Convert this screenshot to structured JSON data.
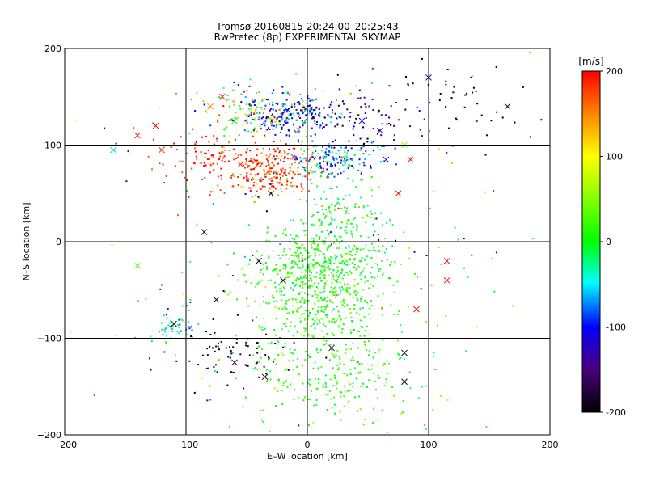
{
  "chart_data": {
    "type": "scatter",
    "title": "Tromsø 20160815 20:24:00–20:25:43",
    "subtitle": "RwPretec (8p) EXPERIMENTAL SKYMAP",
    "xlabel": "E–W location [km]",
    "ylabel": "N–S location [km]",
    "xlim": [
      -200,
      200
    ],
    "ylim": [
      -200,
      200
    ],
    "xticks": [
      -200,
      -100,
      0,
      100,
      200
    ],
    "yticks": [
      -200,
      -100,
      0,
      100,
      200
    ],
    "grid_lines_at": [
      -100,
      0,
      100
    ],
    "colorbar": {
      "label": "[m/s]",
      "min": -200,
      "max": 200,
      "ticks": [
        200,
        100,
        0,
        -100,
        -200
      ],
      "colormap": "rainbow (black–purple–blue–cyan–green–yellow–red)"
    },
    "clusters": [
      {
        "x": -15,
        "y": 130,
        "sx": 20,
        "sy": 10,
        "n": 220,
        "v": -110,
        "sv": 40
      },
      {
        "x": -45,
        "y": 135,
        "sx": 22,
        "sy": 12,
        "n": 110,
        "v": 40,
        "sv": 90
      },
      {
        "x": -65,
        "y": 85,
        "sx": 25,
        "sy": 15,
        "n": 140,
        "v": 185,
        "sv": 25
      },
      {
        "x": -25,
        "y": 72,
        "sx": 18,
        "sy": 12,
        "n": 200,
        "v": 175,
        "sv": 30
      },
      {
        "x": 20,
        "y": 85,
        "sx": 18,
        "sy": 12,
        "n": 170,
        "v": -70,
        "sv": 40
      },
      {
        "x": 50,
        "y": 120,
        "sx": 25,
        "sy": 20,
        "n": 80,
        "v": -160,
        "sv": 40
      },
      {
        "x": 30,
        "y": 25,
        "sx": 18,
        "sy": 18,
        "n": 120,
        "v": 0,
        "sv": 25
      },
      {
        "x": 10,
        "y": -25,
        "sx": 28,
        "sy": 20,
        "n": 450,
        "v": 10,
        "sv": 20
      },
      {
        "x": 10,
        "y": -70,
        "sx": 25,
        "sy": 20,
        "n": 250,
        "v": 20,
        "sv": 25
      },
      {
        "x": 20,
        "y": -140,
        "sx": 40,
        "sy": 30,
        "n": 260,
        "v": 15,
        "sv": 20
      },
      {
        "x": -110,
        "y": -90,
        "sx": 12,
        "sy": 8,
        "n": 45,
        "v": -45,
        "sv": 30
      },
      {
        "x": -60,
        "y": -115,
        "sx": 25,
        "sy": 15,
        "n": 70,
        "v": -190,
        "sv": 20
      },
      {
        "x": 130,
        "y": 150,
        "sx": 40,
        "sy": 25,
        "n": 40,
        "v": -200,
        "sv": 5
      },
      {
        "x": 0,
        "y": 0,
        "sx": 90,
        "sy": 90,
        "n": 180,
        "v": 0,
        "sv": 110
      }
    ],
    "x_markers": [
      {
        "x": -160,
        "y": 95,
        "v": -60
      },
      {
        "x": -140,
        "y": 110,
        "v": 195
      },
      {
        "x": -125,
        "y": 120,
        "v": 195
      },
      {
        "x": -120,
        "y": 95,
        "v": 185
      },
      {
        "x": -80,
        "y": 140,
        "v": 150
      },
      {
        "x": -70,
        "y": 150,
        "v": 190
      },
      {
        "x": -60,
        "y": 125,
        "v": 10
      },
      {
        "x": -85,
        "y": 10,
        "v": -200
      },
      {
        "x": -140,
        "y": -25,
        "v": 30
      },
      {
        "x": -110,
        "y": -85,
        "v": -200
      },
      {
        "x": -75,
        "y": -60,
        "v": -200
      },
      {
        "x": -60,
        "y": -125,
        "v": -170
      },
      {
        "x": -35,
        "y": -140,
        "v": -200
      },
      {
        "x": -20,
        "y": -40,
        "v": -200
      },
      {
        "x": 85,
        "y": 85,
        "v": 195
      },
      {
        "x": 75,
        "y": 50,
        "v": 195
      },
      {
        "x": 115,
        "y": -20,
        "v": 195
      },
      {
        "x": 115,
        "y": -40,
        "v": 195
      },
      {
        "x": 90,
        "y": -70,
        "v": 195
      },
      {
        "x": 80,
        "y": -115,
        "v": -200
      },
      {
        "x": 80,
        "y": -145,
        "v": -200
      },
      {
        "x": 20,
        "y": -110,
        "v": -160
      },
      {
        "x": 45,
        "y": 125,
        "v": -110
      },
      {
        "x": 60,
        "y": 115,
        "v": -120
      },
      {
        "x": 65,
        "y": 85,
        "v": -100
      },
      {
        "x": 80,
        "y": 100,
        "v": 60
      },
      {
        "x": 165,
        "y": 140,
        "v": -200
      },
      {
        "x": 100,
        "y": 170,
        "v": -140
      },
      {
        "x": -55,
        "y": 80,
        "v": 185
      },
      {
        "x": -30,
        "y": 50,
        "v": -200
      },
      {
        "x": -40,
        "y": -20,
        "v": -200
      }
    ]
  }
}
